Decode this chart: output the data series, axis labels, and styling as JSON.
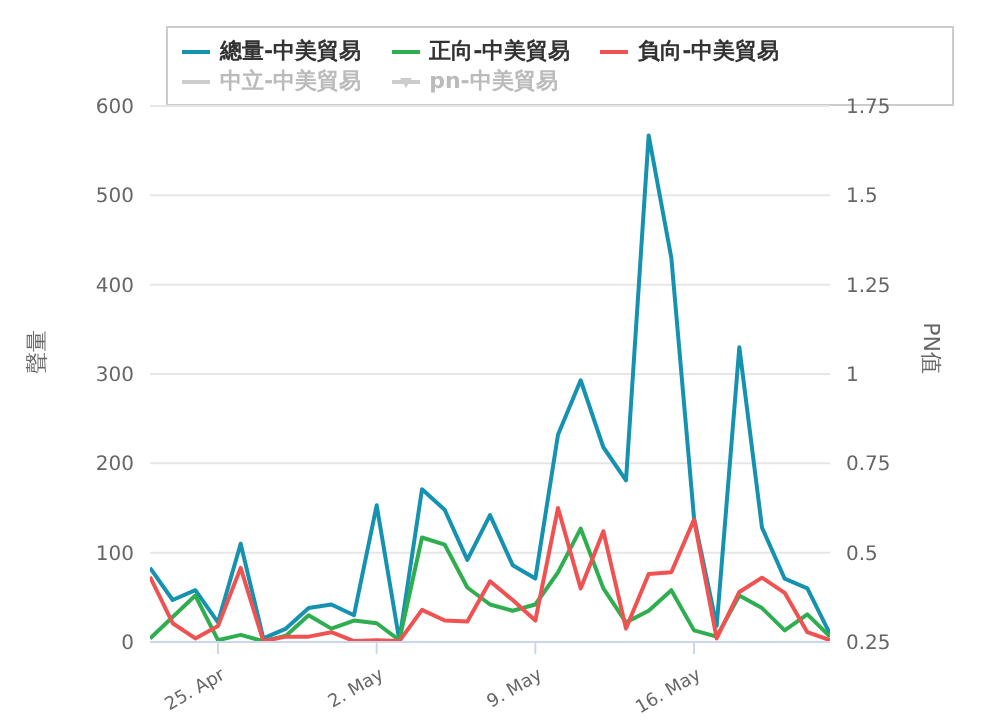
{
  "chart_data": {
    "type": "line",
    "ylabel": "聲量",
    "y2label": "PN值",
    "x": [
      "--04-22",
      "--04-23",
      "--04-24",
      "--04-25",
      "--04-26",
      "--04-27",
      "--04-28",
      "--04-29",
      "--04-30",
      "--05-01",
      "--05-02",
      "--05-03",
      "--05-04",
      "--05-05",
      "--05-06",
      "--05-07",
      "--05-08",
      "--05-09",
      "--05-10",
      "--05-11",
      "--05-12",
      "--05-13",
      "--05-14",
      "--05-15",
      "--05-16",
      "--05-17",
      "--05-18",
      "--05-19",
      "--05-20",
      "--05-21",
      "--05-22"
    ],
    "series": [
      {
        "name": "總量-中美貿易",
        "color": "#1592b0",
        "values": [
          83,
          47,
          58,
          22,
          110,
          4,
          15,
          38,
          42,
          30,
          153,
          2,
          171,
          148,
          92,
          142,
          86,
          71,
          232,
          293,
          218,
          181,
          567,
          430,
          139,
          18,
          330,
          128,
          71,
          60,
          9
        ]
      },
      {
        "name": "正向-中美貿易",
        "color": "#2eae4f",
        "values": [
          4,
          28,
          52,
          2,
          8,
          1,
          7,
          30,
          15,
          24,
          21,
          2,
          117,
          109,
          61,
          42,
          35,
          42,
          78,
          127,
          60,
          22,
          35,
          58,
          13,
          6,
          52,
          38,
          13,
          31,
          6
        ]
      },
      {
        "name": "負向-中美貿易",
        "color": "#f05252",
        "values": [
          73,
          21,
          4,
          18,
          83,
          1,
          6,
          6,
          11,
          1,
          2,
          1,
          36,
          24,
          23,
          68,
          47,
          24,
          150,
          60,
          124,
          15,
          76,
          78,
          137,
          4,
          56,
          72,
          55,
          11,
          2
        ]
      },
      {
        "name": "中立-中美貿易",
        "color": "#cccccc",
        "values": [
          null,
          null,
          null,
          null,
          null,
          null,
          null,
          null,
          null,
          null,
          null,
          null,
          null,
          null,
          null,
          null,
          null,
          null,
          null,
          null,
          null,
          null,
          null,
          null,
          null,
          null,
          null,
          null,
          null,
          null,
          null
        ]
      },
      {
        "name": "pn-中美貿易",
        "color": "#cccccc",
        "marker": "triangle",
        "values": [
          null,
          null,
          null,
          null,
          null,
          null,
          null,
          null,
          null,
          null,
          null,
          null,
          null,
          null,
          null,
          null,
          null,
          null,
          null,
          null,
          null,
          null,
          null,
          null,
          null,
          null,
          null,
          null,
          null,
          null,
          null
        ]
      }
    ],
    "xlim": [
      "--04-22",
      "--05-22"
    ],
    "xticks": [
      {
        "value": "--04-25",
        "label": "25. Apr"
      },
      {
        "value": "--05-02",
        "label": "2. May"
      },
      {
        "value": "--05-09",
        "label": "9. May"
      },
      {
        "value": "--05-16",
        "label": "16. May"
      }
    ],
    "ylim": [
      0,
      600
    ],
    "yticks": [
      0,
      100,
      200,
      300,
      400,
      500,
      600
    ],
    "y2lim": [
      0.25,
      1.75
    ],
    "y2ticks": [
      0.25,
      0.5,
      0.75,
      1,
      1.25,
      1.5,
      1.75
    ],
    "grid": "y",
    "legend": "top"
  }
}
